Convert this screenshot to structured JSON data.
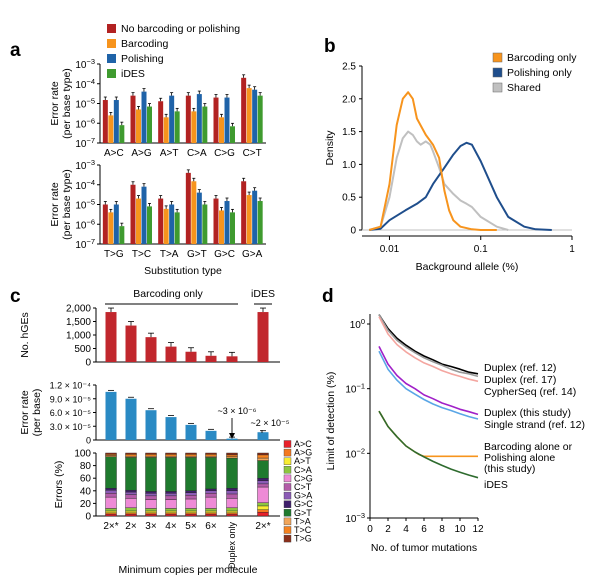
{
  "panels": {
    "a": "a",
    "b": "b",
    "c": "c",
    "d": "d"
  },
  "chart_data": [
    {
      "panel": "a",
      "type": "bar",
      "ylabel": "Error rate (per base type)",
      "ylabel_lines": [
        "Error rate",
        "(per base type)"
      ],
      "xlabel": "Substitution type",
      "yscale": "log",
      "ylim": [
        1e-07,
        0.001
      ],
      "ytick_labels": [
        {
          "e": -3,
          "base": "10",
          "exp": "−3"
        },
        {
          "e": -4,
          "base": "10",
          "exp": "−4"
        },
        {
          "e": -5,
          "base": "10",
          "exp": "−5"
        },
        {
          "e": -6,
          "base": "10",
          "exp": "−6"
        },
        {
          "e": -7,
          "base": "10",
          "exp": "−7"
        }
      ],
      "legend": [
        "No barcoding or polishing",
        "Barcoding",
        "Polishing",
        "iDES"
      ],
      "colors": [
        "#b22222",
        "#f7941d",
        "#1f63a8",
        "#3f9b2f"
      ],
      "rows": [
        {
          "categories": [
            "A>C",
            "A>G",
            "A>T",
            "C>A",
            "C>G",
            "C>T"
          ],
          "series": [
            {
              "name": "No barcoding or polishing",
              "values": [
                1.5e-05,
                2.5e-05,
                1.3e-05,
                2.5e-05,
                2e-05,
                0.0002
              ]
            },
            {
              "name": "Barcoding",
              "values": [
                2.5e-06,
                5e-06,
                2e-06,
                4e-06,
                2e-06,
                6e-05
              ]
            },
            {
              "name": "Polishing",
              "values": [
                1.5e-05,
                4e-05,
                2.5e-05,
                3e-05,
                2e-05,
                5e-05
              ]
            },
            {
              "name": "iDES",
              "values": [
                8e-07,
                7e-06,
                4e-06,
                7e-06,
                7e-07,
                2.5e-05
              ]
            }
          ]
        },
        {
          "categories": [
            "T>G",
            "T>C",
            "T>A",
            "G>T",
            "G>C",
            "G>A"
          ],
          "series": [
            {
              "name": "No barcoding or polishing",
              "values": [
                1e-05,
                0.0001,
                2e-05,
                0.0004,
                2e-05,
                0.00015
              ]
            },
            {
              "name": "Barcoding",
              "values": [
                4e-06,
                2e-05,
                6e-06,
                0.00015,
                5e-06,
                3e-05
              ]
            },
            {
              "name": "Polishing",
              "values": [
                1e-05,
                8e-05,
                1e-05,
                4e-05,
                1.5e-05,
                5e-05
              ]
            },
            {
              "name": "iDES",
              "values": [
                8e-07,
                8e-06,
                4e-06,
                1e-05,
                4e-06,
                1.5e-05
              ]
            }
          ]
        }
      ]
    },
    {
      "panel": "b",
      "type": "area",
      "xlabel": "Background allele (%)",
      "ylabel": "Density",
      "xscale": "log",
      "xlim": [
        0.005,
        1.0
      ],
      "ylim": [
        0,
        2.5
      ],
      "xtick_labels": [
        "0.01",
        "0.1",
        "1"
      ],
      "ytick_labels": [
        "0",
        "0.5",
        "1.0",
        "1.5",
        "2.0",
        "2.5"
      ],
      "legend": [
        "Barcoding only",
        "Polishing only",
        "Shared"
      ],
      "colors": [
        "#f7941d",
        "#1f4e8c",
        "#c0c0c0"
      ],
      "series": [
        {
          "name": "Barcoding only",
          "x": [
            0.006,
            0.008,
            0.01,
            0.012,
            0.014,
            0.016,
            0.018,
            0.02,
            0.025,
            0.03,
            0.035,
            0.04,
            0.045,
            0.05,
            0.06,
            0.08,
            0.1,
            0.15
          ],
          "y": [
            0.0,
            0.05,
            0.7,
            1.6,
            2.0,
            2.1,
            2.0,
            1.7,
            1.45,
            1.3,
            1.1,
            0.6,
            0.3,
            0.15,
            0.05,
            0.01,
            0.0,
            0.0
          ]
        },
        {
          "name": "Polishing only",
          "x": [
            0.006,
            0.008,
            0.01,
            0.015,
            0.02,
            0.025,
            0.03,
            0.04,
            0.05,
            0.06,
            0.07,
            0.08,
            0.1,
            0.15,
            0.2,
            0.3,
            0.4,
            0.6
          ],
          "y": [
            0.0,
            0.02,
            0.15,
            0.3,
            0.4,
            0.5,
            0.7,
            0.95,
            1.15,
            1.28,
            1.33,
            1.3,
            1.05,
            0.5,
            0.2,
            0.05,
            0.01,
            0.0
          ]
        },
        {
          "name": "Shared",
          "x": [
            0.006,
            0.008,
            0.01,
            0.012,
            0.014,
            0.016,
            0.018,
            0.02,
            0.022,
            0.025,
            0.028,
            0.03,
            0.035,
            0.04,
            0.05,
            0.06,
            0.07,
            0.08,
            0.1,
            0.15,
            0.2
          ],
          "y": [
            0.0,
            0.05,
            0.5,
            1.1,
            1.4,
            1.5,
            1.45,
            1.35,
            1.3,
            1.35,
            1.3,
            1.2,
            0.95,
            0.7,
            0.55,
            0.45,
            0.4,
            0.35,
            0.2,
            0.05,
            0.0
          ]
        }
      ]
    },
    {
      "panel": "c",
      "type": "bar",
      "xlabel": "Minimum copies per molecule",
      "categories": [
        "2×*",
        "2×",
        "3×",
        "4×",
        "5×",
        "6×",
        "Duplex only",
        "2×*"
      ],
      "group_labels": {
        "barcoding": "Barcoding only",
        "ides": "iDES"
      },
      "subplots": [
        {
          "ylabel": "No. hGEs",
          "ylim": [
            0,
            2000
          ],
          "ytick_labels": [
            "0",
            "500",
            "1,000",
            "1,500",
            "2,000"
          ],
          "color": "#c1272d",
          "values": [
            1850,
            1350,
            920,
            570,
            380,
            230,
            210,
            1850
          ]
        },
        {
          "ylabel": "Error rate (per base)",
          "ylabel_lines": [
            "Error rate",
            "(per base)"
          ],
          "ylim": [
            0,
            0.00012
          ],
          "ytick_labels": [
            "0",
            "3.0 × 10⁻⁵",
            "6.0 × 10⁻⁵",
            "9.0 × 10⁻⁵",
            "1.2 × 10⁻⁴"
          ],
          "color": "#2a8ac4",
          "values": [
            0.000105,
            9e-05,
            6.5e-05,
            5e-05,
            3.3e-05,
            2e-05,
            3e-06,
            1.7e-05
          ],
          "annotations": [
            "~3 × 10⁻⁶",
            "~2 × 10⁻⁵"
          ]
        },
        {
          "ylabel": "Errors (%)",
          "ylim": [
            0,
            100
          ],
          "ytick_labels": [
            "0",
            "20",
            "40",
            "60",
            "80",
            "100"
          ],
          "type": "stacked_bar",
          "legend": [
            "A>C",
            "A>G",
            "A>T",
            "C>A",
            "C>G",
            "C>T",
            "G>A",
            "G>C",
            "G>T",
            "T>A",
            "T>C",
            "T>G"
          ],
          "colors": [
            "#e8202a",
            "#f47920",
            "#f9ed32",
            "#8dc63f",
            "#ee8ad6",
            "#b35ca8",
            "#8b5bb6",
            "#3f1f6b",
            "#1f7a2e",
            "#f2a65a",
            "#f58220",
            "#8b2f1a"
          ],
          "stacks": [
            [
              3,
              2,
              3,
              4,
              18,
              6,
              5,
              3,
              50,
              2,
              2,
              2
            ],
            [
              3,
              2,
              3,
              5,
              15,
              6,
              4,
              3,
              52,
              2,
              3,
              2
            ],
            [
              3,
              2,
              3,
              4,
              14,
              6,
              4,
              3,
              54,
              2,
              3,
              2
            ],
            [
              3,
              2,
              3,
              4,
              14,
              6,
              4,
              3,
              54,
              2,
              3,
              2
            ],
            [
              3,
              2,
              3,
              4,
              15,
              6,
              4,
              3,
              53,
              2,
              3,
              2
            ],
            [
              3,
              2,
              3,
              4,
              18,
              6,
              4,
              3,
              50,
              2,
              3,
              2
            ],
            [
              3,
              2,
              3,
              5,
              15,
              7,
              5,
              4,
              48,
              2,
              3,
              3
            ],
            [
              6,
              4,
              6,
              5,
              25,
              5,
              5,
              4,
              28,
              4,
              5,
              3
            ]
          ]
        }
      ]
    },
    {
      "panel": "d",
      "type": "line",
      "xlabel": "No. of tumor mutations",
      "ylabel": "Limit of detection (%)",
      "yscale": "log",
      "xlim": [
        0,
        12
      ],
      "ylim": [
        0.001,
        1.0
      ],
      "xtick_labels": [
        "0",
        "2",
        "4",
        "6",
        "8",
        "10",
        "12"
      ],
      "ytick_labels": [
        {
          "e": 0,
          "base": "10",
          "exp": "0"
        },
        {
          "e": -1,
          "base": "10",
          "exp": "−1"
        },
        {
          "e": -2,
          "base": "10",
          "exp": "−2"
        },
        {
          "e": -3,
          "base": "10",
          "exp": "−3"
        }
      ],
      "series": [
        {
          "name": "Duplex (ref. 12)",
          "color": "#000000",
          "x": [
            1,
            2,
            3,
            4,
            5,
            6,
            7,
            8,
            9,
            10,
            11,
            12
          ],
          "y": [
            1.6,
            0.85,
            0.6,
            0.47,
            0.38,
            0.32,
            0.28,
            0.24,
            0.22,
            0.2,
            0.18,
            0.17
          ]
        },
        {
          "name": "Duplex (ref. 17)",
          "color": "#9a9a9a",
          "x": [
            1,
            2,
            3,
            4,
            5,
            6,
            7,
            8,
            9,
            10,
            11,
            12
          ],
          "y": [
            1.5,
            0.8,
            0.56,
            0.44,
            0.36,
            0.3,
            0.26,
            0.23,
            0.2,
            0.18,
            0.17,
            0.155
          ]
        },
        {
          "name": "CypherSeq (ref. 14)",
          "color": "#f4a6a0",
          "x": [
            1,
            2,
            3,
            4,
            5,
            6,
            7,
            8,
            9,
            10,
            11,
            12
          ],
          "y": [
            1.3,
            0.7,
            0.48,
            0.37,
            0.3,
            0.25,
            0.22,
            0.19,
            0.17,
            0.155,
            0.14,
            0.13
          ]
        },
        {
          "name": "Duplex (this study)",
          "color": "#a020c8",
          "x": [
            1,
            2,
            3,
            4,
            5,
            6,
            7,
            8,
            9,
            10,
            11,
            12
          ],
          "y": [
            0.45,
            0.24,
            0.16,
            0.12,
            0.1,
            0.08,
            0.07,
            0.06,
            0.054,
            0.048,
            0.044,
            0.04
          ]
        },
        {
          "name": "Single strand (ref. 12)",
          "color": "#5aa6e6",
          "x": [
            1,
            2,
            3,
            4,
            5,
            6,
            7,
            8,
            9,
            10,
            11,
            12
          ],
          "y": [
            0.38,
            0.2,
            0.135,
            0.1,
            0.082,
            0.068,
            0.058,
            0.051,
            0.046,
            0.041,
            0.037,
            0.034
          ]
        },
        {
          "name": "Barcoding alone or Polishing alone (this study)",
          "label_lines": [
            "Barcoding alone or",
            "Polishing alone",
            "(this study)"
          ],
          "color": "#f7941d",
          "x": [
            1,
            2,
            3,
            4,
            5,
            5.5,
            6,
            8,
            10,
            12
          ],
          "y": [
            0.045,
            0.026,
            0.018,
            0.013,
            0.0105,
            0.0095,
            0.009,
            0.009,
            0.009,
            0.009
          ]
        },
        {
          "name": "iDES",
          "color": "#2e6b2e",
          "x": [
            1,
            2,
            3,
            4,
            5,
            6,
            7,
            8,
            9,
            10,
            11,
            12
          ],
          "y": [
            0.045,
            0.026,
            0.018,
            0.013,
            0.0105,
            0.0088,
            0.0075,
            0.0065,
            0.0057,
            0.0051,
            0.0046,
            0.0042
          ]
        }
      ]
    }
  ]
}
